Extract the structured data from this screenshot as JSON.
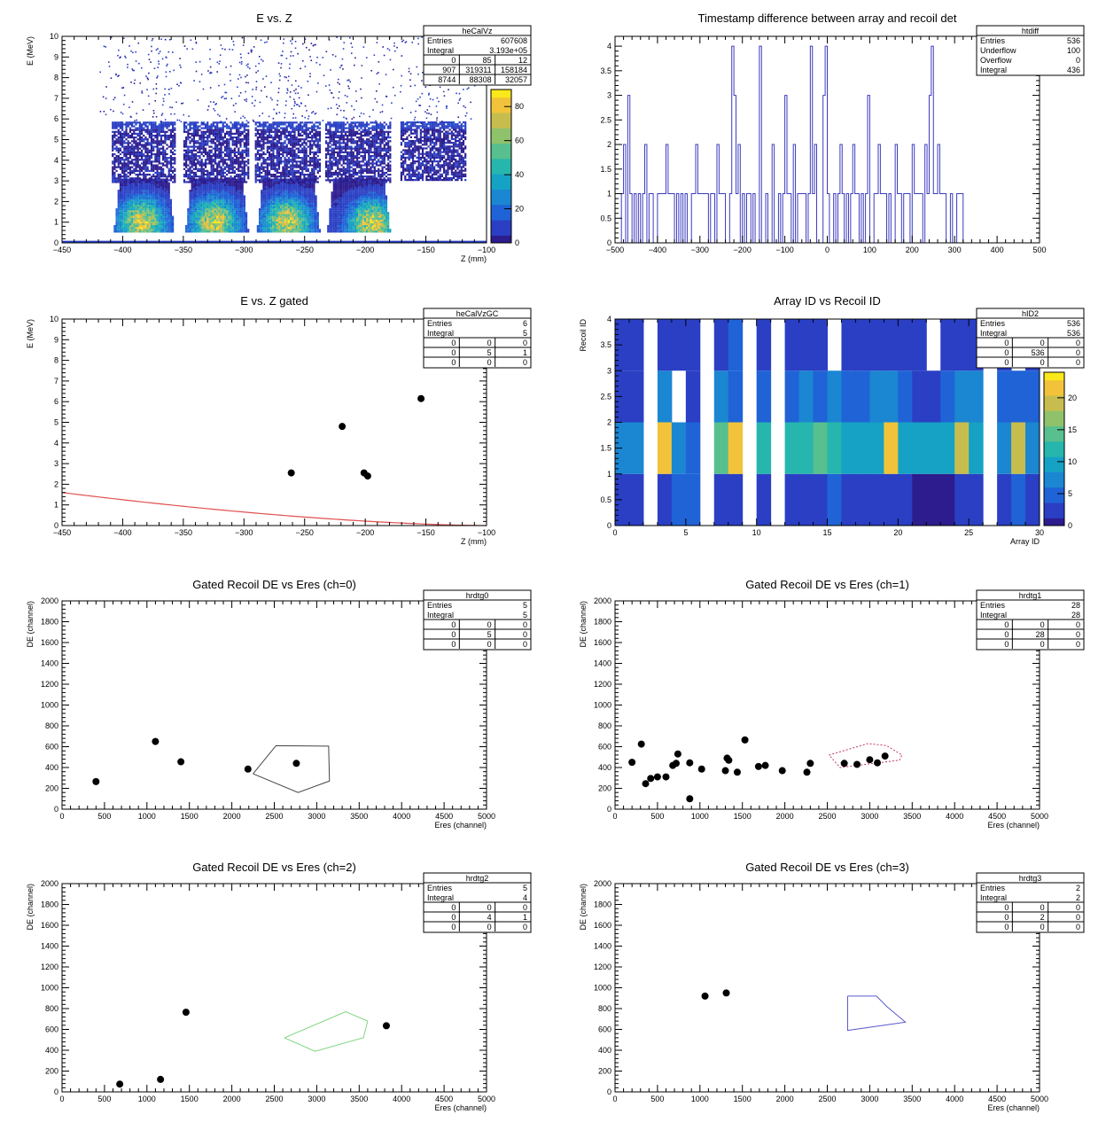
{
  "colors": {
    "hist_line": "#3b3bbf",
    "axis": "#000000",
    "cut_red": "#e05050",
    "cut_black": "#444444",
    "cut_green": "#7ed67e",
    "cut_blue": "#5a5ad0",
    "cut_pink": "#c0395a",
    "marker": "#000000",
    "palette": [
      "#2c1c8e",
      "#2a3fc4",
      "#1f63d7",
      "#1b86d2",
      "#15a2c4",
      "#26b6ae",
      "#58bf8e",
      "#8fc26a",
      "#c7bd4e",
      "#f2c33a",
      "#f9e81a"
    ]
  },
  "chart_data": [
    {
      "id": "heCalVz",
      "type": "heatmap",
      "title": "E vs. Z",
      "xlabel": "Z (mm)",
      "ylabel": "E (MeV)",
      "xlim": [
        -450,
        -100
      ],
      "ylim": [
        0,
        10
      ],
      "xticks": [
        -450,
        -400,
        -350,
        -300,
        -250,
        -200,
        -150,
        -100
      ],
      "yticks": [
        0,
        1,
        2,
        3,
        4,
        5,
        6,
        7,
        8,
        9,
        10
      ],
      "zlim": [
        0,
        90
      ],
      "zticks": [
        0,
        20,
        40,
        60,
        80
      ],
      "stats": {
        "name": "heCalVz",
        "rows": [
          [
            "Entries",
            "607608"
          ],
          [
            "Integral",
            "3.193e+05"
          ]
        ],
        "grid": [
          [
            "0",
            "85",
            "12"
          ],
          [
            "907",
            "319311",
            "158184"
          ],
          [
            "8744",
            "88308",
            "32057"
          ]
        ]
      },
      "blocks": [
        {
          "x": [
            -409,
            -357
          ],
          "lower_ymax": 3.1,
          "upper": [
            2.9,
            5.8
          ],
          "hot": [
            -385,
            1.0
          ]
        },
        {
          "x": [
            -350,
            -296
          ],
          "lower_ymax": 3.1,
          "upper": [
            2.9,
            5.8
          ],
          "hot": [
            -325,
            1.0
          ]
        },
        {
          "x": [
            -291,
            -237
          ],
          "lower_ymax": 3.1,
          "upper": [
            2.9,
            5.8
          ],
          "hot": [
            -265,
            1.0
          ]
        },
        {
          "x": [
            -233,
            -179
          ],
          "lower_ymax": 3.1,
          "upper": [
            2.9,
            5.8
          ],
          "hot": [
            -195,
            0.9
          ]
        },
        {
          "x": [
            -171,
            -118
          ],
          "lower_ymax": 0,
          "upper": [
            3.0,
            5.8
          ],
          "hot": null
        }
      ]
    },
    {
      "id": "htdiff",
      "type": "bar",
      "title": "Timestamp difference between array and recoil det",
      "xlabel": "",
      "ylabel": "",
      "xlim": [
        -500,
        500
      ],
      "ylim": [
        0,
        4.2
      ],
      "xticks": [
        -500,
        -400,
        -300,
        -200,
        -100,
        0,
        100,
        200,
        300,
        400,
        500
      ],
      "yticks": [
        0,
        0.5,
        1,
        1.5,
        2,
        2.5,
        3,
        3.5,
        4
      ],
      "data_range": [
        -490,
        320
      ],
      "spikes": [
        [
          -225,
          4
        ],
        [
          -160,
          4
        ],
        [
          -40,
          4
        ],
        [
          -5,
          4
        ],
        [
          245,
          4
        ],
        [
          -480,
          2
        ],
        [
          -430,
          2
        ],
        [
          -380,
          2
        ],
        [
          -310,
          2
        ],
        [
          -260,
          2
        ],
        [
          -210,
          2
        ],
        [
          -130,
          2
        ],
        [
          -80,
          2
        ],
        [
          -30,
          2
        ],
        [
          30,
          2
        ],
        [
          60,
          2
        ],
        [
          120,
          2
        ],
        [
          160,
          2
        ],
        [
          200,
          2
        ],
        [
          230,
          2
        ],
        [
          260,
          2
        ],
        [
          -470,
          3
        ],
        [
          -220,
          3
        ],
        [
          -100,
          3
        ],
        [
          -10,
          3
        ],
        [
          95,
          3
        ],
        [
          240,
          3
        ]
      ],
      "stats": {
        "name": "htdiff",
        "rows": [
          [
            "Entries",
            "536"
          ],
          [
            "Underflow",
            "100"
          ],
          [
            "Overflow",
            "0"
          ],
          [
            "Integral",
            "436"
          ]
        ],
        "grid": []
      }
    },
    {
      "id": "heCalVzGC",
      "type": "scatter",
      "title": "E vs. Z gated",
      "xlabel": "Z (mm)",
      "ylabel": "E (MeV)",
      "xlim": [
        -450,
        -100
      ],
      "ylim": [
        0,
        10
      ],
      "xticks": [
        -450,
        -400,
        -350,
        -300,
        -250,
        -200,
        -150,
        -100
      ],
      "yticks": [
        0,
        1,
        2,
        3,
        4,
        5,
        6,
        7,
        8,
        9,
        10
      ],
      "points": [
        [
          -154,
          6.15
        ],
        [
          -219,
          4.8
        ],
        [
          -261,
          2.55
        ],
        [
          -201,
          2.55
        ],
        [
          -198,
          2.4
        ]
      ],
      "curve": [
        [
          -450,
          1.6
        ],
        [
          -350,
          0.95
        ],
        [
          -250,
          0.45
        ],
        [
          -150,
          0.1
        ],
        [
          -100,
          0.0
        ]
      ],
      "stats": {
        "name": "heCalVzGC",
        "rows": [
          [
            "Entries",
            "6"
          ],
          [
            "Integral",
            "5"
          ]
        ],
        "grid": [
          [
            "0",
            "0",
            "0"
          ],
          [
            "0",
            "5",
            "1"
          ],
          [
            "0",
            "0",
            "0"
          ]
        ]
      }
    },
    {
      "id": "hID2",
      "type": "heatmap",
      "title": "Array ID vs Recoil ID",
      "xlabel": "Array ID",
      "ylabel": "Recoil ID",
      "xlim": [
        0,
        30
      ],
      "ylim": [
        0,
        4
      ],
      "xticks": [
        0,
        5,
        10,
        15,
        20,
        25,
        30
      ],
      "yticks": [
        0,
        0.5,
        1,
        1.5,
        2,
        2.5,
        3,
        3.5,
        4
      ],
      "zlim": [
        0,
        24
      ],
      "zticks": [
        0,
        5,
        10,
        15,
        20
      ],
      "rows_y": [
        [
          0,
          1
        ],
        [
          1,
          2
        ],
        [
          2,
          3
        ],
        [
          3,
          4
        ]
      ],
      "cells": [
        [
          3,
          3,
          0,
          3,
          4,
          5,
          0,
          3,
          3,
          0,
          3,
          0,
          3,
          3,
          3,
          4,
          3,
          3,
          3,
          3,
          3,
          1,
          1,
          1,
          2,
          3,
          0,
          3,
          4,
          3
        ],
        [
          6,
          6,
          0,
          22,
          8,
          4,
          0,
          14,
          21,
          0,
          11,
          0,
          11,
          11,
          14,
          11,
          9,
          9,
          10,
          22,
          10,
          9,
          9,
          9,
          18,
          9,
          0,
          7,
          18,
          7
        ],
        [
          3,
          3,
          0,
          7,
          0,
          3,
          0,
          6,
          4,
          0,
          4,
          0,
          4,
          6,
          4,
          6,
          4,
          4,
          6,
          7,
          4,
          3,
          3,
          4,
          6,
          6,
          0,
          4,
          4,
          4
        ],
        [
          3,
          3,
          0,
          3,
          3,
          3,
          0,
          3,
          4,
          0,
          3,
          0,
          3,
          3,
          3,
          0,
          3,
          3,
          3,
          3,
          3,
          3,
          0,
          3,
          3,
          3,
          0,
          3,
          0,
          3
        ]
      ],
      "stats": {
        "name": "hID2",
        "rows": [
          [
            "Entries",
            "536"
          ],
          [
            "Integral",
            "536"
          ]
        ],
        "grid": [
          [
            "0",
            "0",
            "0"
          ],
          [
            "0",
            "536",
            "0"
          ],
          [
            "0",
            "0",
            "0"
          ]
        ]
      }
    },
    {
      "id": "hrdtg0",
      "type": "scatter",
      "title": "Gated Recoil DE vs Eres (ch=0)",
      "xlabel": "Eres (channel)",
      "ylabel": "DE (channel)",
      "xlim": [
        0,
        5000
      ],
      "ylim": [
        0,
        2000
      ],
      "xticks": [
        0,
        500,
        1000,
        1500,
        2000,
        2500,
        3000,
        3500,
        4000,
        4500,
        5000
      ],
      "yticks": [
        0,
        200,
        400,
        600,
        800,
        1000,
        1200,
        1400,
        1600,
        1800,
        2000
      ],
      "points": [
        [
          400,
          265
        ],
        [
          1100,
          650
        ],
        [
          1400,
          455
        ],
        [
          2190,
          385
        ],
        [
          2760,
          440
        ]
      ],
      "cut": {
        "color_key": "cut_black",
        "dashed": false,
        "vertices": [
          [
            2250,
            340
          ],
          [
            2520,
            610
          ],
          [
            3140,
            605
          ],
          [
            3150,
            270
          ],
          [
            2780,
            160
          ],
          [
            2250,
            340
          ]
        ]
      },
      "stats": {
        "name": "hrdtg0",
        "rows": [
          [
            "Entries",
            "5"
          ],
          [
            "Integral",
            "5"
          ]
        ],
        "grid": [
          [
            "0",
            "0",
            "0"
          ],
          [
            "0",
            "5",
            "0"
          ],
          [
            "0",
            "0",
            "0"
          ]
        ]
      }
    },
    {
      "id": "hrdtg1",
      "type": "scatter",
      "title": "Gated Recoil DE vs Eres (ch=1)",
      "xlabel": "Eres (channel)",
      "ylabel": "DE (channel)",
      "xlim": [
        0,
        5000
      ],
      "ylim": [
        0,
        2000
      ],
      "xticks": [
        0,
        500,
        1000,
        1500,
        2000,
        2500,
        3000,
        3500,
        4000,
        4500,
        5000
      ],
      "yticks": [
        0,
        200,
        400,
        600,
        800,
        1000,
        1200,
        1400,
        1600,
        1800,
        2000
      ],
      "points": [
        [
          200,
          450
        ],
        [
          310,
          625
        ],
        [
          360,
          245
        ],
        [
          420,
          295
        ],
        [
          500,
          310
        ],
        [
          600,
          310
        ],
        [
          680,
          420
        ],
        [
          720,
          440
        ],
        [
          740,
          530
        ],
        [
          880,
          445
        ],
        [
          880,
          100
        ],
        [
          1020,
          385
        ],
        [
          1300,
          370
        ],
        [
          1320,
          490
        ],
        [
          1340,
          470
        ],
        [
          1440,
          355
        ],
        [
          1530,
          665
        ],
        [
          1690,
          410
        ],
        [
          1770,
          420
        ],
        [
          1970,
          370
        ],
        [
          2260,
          355
        ],
        [
          2300,
          440
        ],
        [
          2700,
          440
        ],
        [
          2850,
          430
        ],
        [
          3000,
          475
        ],
        [
          3090,
          445
        ],
        [
          3180,
          510
        ]
      ],
      "cut": {
        "color_key": "cut_pink",
        "dashed": true,
        "vertices": [
          [
            2520,
            520
          ],
          [
            2980,
            630
          ],
          [
            3200,
            610
          ],
          [
            3380,
            520
          ],
          [
            3350,
            470
          ],
          [
            2650,
            400
          ],
          [
            2520,
            520
          ]
        ]
      },
      "stats": {
        "name": "hrdtg1",
        "rows": [
          [
            "Entries",
            "28"
          ],
          [
            "Integral",
            "28"
          ]
        ],
        "grid": [
          [
            "0",
            "0",
            "0"
          ],
          [
            "0",
            "28",
            "0"
          ],
          [
            "0",
            "0",
            "0"
          ]
        ]
      }
    },
    {
      "id": "hrdtg2",
      "type": "scatter",
      "title": "Gated Recoil DE vs Eres (ch=2)",
      "xlabel": "Eres (channel)",
      "ylabel": "DE (channel)",
      "xlim": [
        0,
        5000
      ],
      "ylim": [
        0,
        2000
      ],
      "xticks": [
        0,
        500,
        1000,
        1500,
        2000,
        2500,
        3000,
        3500,
        4000,
        4500,
        5000
      ],
      "yticks": [
        0,
        200,
        400,
        600,
        800,
        1000,
        1200,
        1400,
        1600,
        1800,
        2000
      ],
      "points": [
        [
          680,
          75
        ],
        [
          1160,
          120
        ],
        [
          1460,
          765
        ],
        [
          3820,
          635
        ]
      ],
      "cut": {
        "color_key": "cut_green",
        "dashed": false,
        "vertices": [
          [
            2620,
            520
          ],
          [
            3340,
            770
          ],
          [
            3600,
            680
          ],
          [
            3550,
            520
          ],
          [
            2980,
            390
          ],
          [
            2620,
            520
          ]
        ]
      },
      "stats": {
        "name": "hrdtg2",
        "rows": [
          [
            "Entries",
            "5"
          ],
          [
            "Integral",
            "4"
          ]
        ],
        "grid": [
          [
            "0",
            "0",
            "0"
          ],
          [
            "0",
            "4",
            "1"
          ],
          [
            "0",
            "0",
            "0"
          ]
        ]
      }
    },
    {
      "id": "hrdtg3",
      "type": "scatter",
      "title": "Gated Recoil DE vs Eres (ch=3)",
      "xlabel": "Eres (channel)",
      "ylabel": "DE (channel)",
      "xlim": [
        0,
        5000
      ],
      "ylim": [
        0,
        2000
      ],
      "xticks": [
        0,
        500,
        1000,
        1500,
        2000,
        2500,
        3000,
        3500,
        4000,
        4500,
        5000
      ],
      "yticks": [
        0,
        200,
        400,
        600,
        800,
        1000,
        1200,
        1400,
        1600,
        1800,
        2000
      ],
      "points": [
        [
          1060,
          920
        ],
        [
          1310,
          950
        ]
      ],
      "cut": {
        "color_key": "cut_blue",
        "dashed": false,
        "vertices": [
          [
            2740,
            920
          ],
          [
            3080,
            920
          ],
          [
            3200,
            820
          ],
          [
            3420,
            670
          ],
          [
            2740,
            590
          ],
          [
            2740,
            920
          ]
        ]
      },
      "stats": {
        "name": "hrdtg3",
        "rows": [
          [
            "Entries",
            "2"
          ],
          [
            "Integral",
            "2"
          ]
        ],
        "grid": [
          [
            "0",
            "0",
            "0"
          ],
          [
            "0",
            "2",
            "0"
          ],
          [
            "0",
            "0",
            "0"
          ]
        ]
      }
    }
  ]
}
